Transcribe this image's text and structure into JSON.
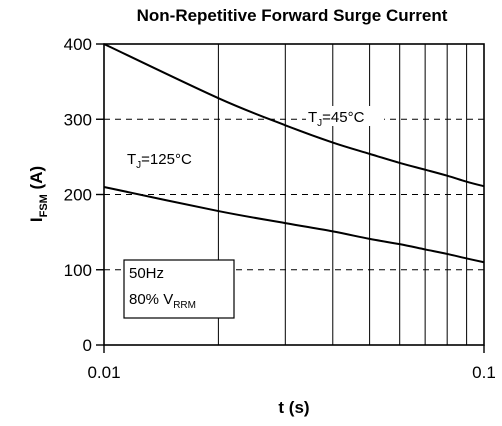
{
  "chart_data": {
    "type": "line",
    "title": "Non-Repetitive Forward Surge Current",
    "xlabel": "t (s)",
    "ylabel_main": "I",
    "ylabel_sub": "FSM",
    "ylabel_unit": " (A)",
    "xscale": "log",
    "xlim": [
      0.01,
      0.1
    ],
    "ylim": [
      0,
      400
    ],
    "x_ticks": [
      0.01,
      0.1
    ],
    "x_tick_labels": [
      "0.01",
      "0.1"
    ],
    "y_ticks": [
      0,
      100,
      200,
      300,
      400
    ],
    "y_tick_labels": [
      "0",
      "100",
      "200",
      "300",
      "400"
    ],
    "grid": {
      "vertical_lines": [
        0.02,
        0.03,
        0.04,
        0.05,
        0.06,
        0.07,
        0.08,
        0.09
      ],
      "horizontal_dashed": [
        100,
        200,
        300
      ]
    },
    "series": [
      {
        "name_main": "T",
        "name_sub": "J",
        "name_rest": "=45°C",
        "x": [
          0.01,
          0.02,
          0.03,
          0.04,
          0.05,
          0.06,
          0.07,
          0.08,
          0.09,
          0.1
        ],
        "values": [
          400,
          328,
          292,
          269,
          254,
          242,
          233,
          225,
          217,
          211
        ]
      },
      {
        "name_main": "T",
        "name_sub": "J",
        "name_rest": "=125°C",
        "x": [
          0.01,
          0.02,
          0.03,
          0.04,
          0.05,
          0.06,
          0.07,
          0.08,
          0.09,
          0.1
        ],
        "values": [
          210,
          178,
          162,
          151,
          141,
          134,
          127,
          121,
          115,
          110
        ]
      }
    ],
    "conditions": {
      "line1": "50Hz",
      "line2_main": "80% V",
      "line2_sub": "RRM"
    }
  }
}
